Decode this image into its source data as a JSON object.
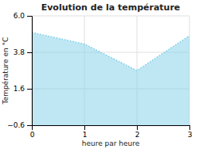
{
  "chart_data": {
    "type": "area",
    "title": "Evolution de la température",
    "xlabel": "heure par heure",
    "ylabel": "Température en °C",
    "x": [
      0,
      1,
      2,
      3
    ],
    "values": [
      5.0,
      4.3,
      2.7,
      4.8
    ],
    "color": "#7dcfe8",
    "line_style": "dotted",
    "xlim": [
      0,
      3
    ],
    "ylim": [
      -0.6,
      6.0
    ],
    "xticks": [
      0,
      1,
      2,
      3
    ],
    "yticks": [
      {
        "value": -0.6,
        "label": "−0.6"
      },
      1.6,
      3.8,
      {
        "value": 6.0,
        "label": "6.0"
      }
    ],
    "grid": true
  }
}
